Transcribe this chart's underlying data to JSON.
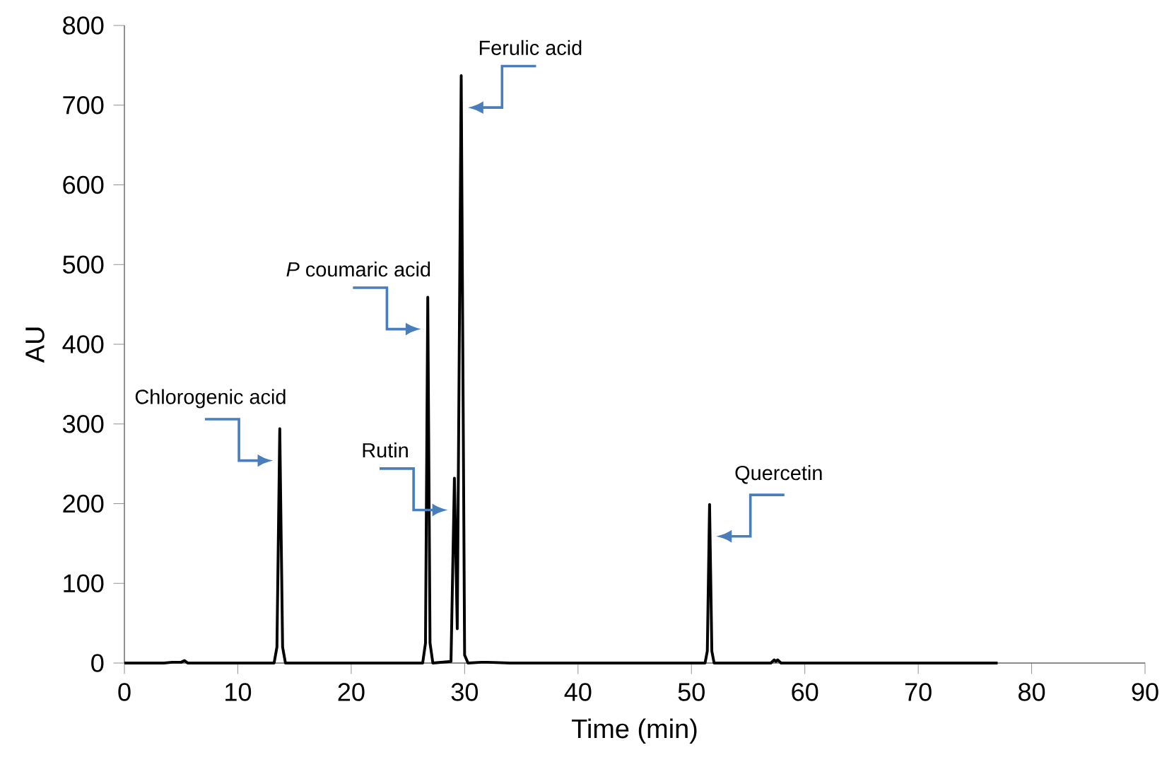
{
  "chart_data": {
    "type": "line",
    "xlabel": "Time (min)",
    "ylabel": "AU",
    "xlim": [
      0,
      90
    ],
    "xticks": [
      0,
      10,
      20,
      30,
      40,
      50,
      60,
      70,
      80,
      90
    ],
    "ylim": [
      0,
      800
    ],
    "yticks": [
      0,
      100,
      200,
      300,
      400,
      500,
      600,
      700,
      800
    ],
    "grid": false,
    "marker": "none",
    "line_style": "solid",
    "series": [
      {
        "color": "#000000",
        "x": [
          0,
          3.5,
          4.2,
          5.0,
          5.3,
          5.6,
          13.2,
          13.45,
          13.7,
          13.95,
          14.2,
          26.3,
          26.55,
          26.75,
          26.95,
          27.2,
          28.8,
          29.1,
          29.35,
          29.7,
          30.0,
          30.3,
          31.5,
          32.0,
          34.0,
          51.2,
          51.4,
          51.6,
          51.8,
          52.0,
          57.0,
          57.3,
          57.45,
          57.6,
          57.9,
          77.0
        ],
        "values": [
          0,
          0,
          1,
          1,
          3,
          0,
          0,
          20,
          294,
          20,
          0,
          0,
          25,
          459,
          25,
          0,
          2,
          232,
          43,
          737,
          10,
          0,
          1,
          1,
          0,
          0,
          15,
          199,
          15,
          0,
          0,
          4,
          2,
          4,
          0,
          0
        ]
      }
    ],
    "annotations": [
      {
        "text": "Chlorogenic acid",
        "x": 13.7,
        "y": 294
      },
      {
        "text": "*P* coumaric acid",
        "x": 26.75,
        "y": 459
      },
      {
        "text": "Rutin",
        "x": 29.1,
        "y": 232
      },
      {
        "text": "Ferulic acid",
        "x": 29.7,
        "y": 737
      },
      {
        "text": "Quercetin",
        "x": 51.6,
        "y": 199
      }
    ]
  }
}
